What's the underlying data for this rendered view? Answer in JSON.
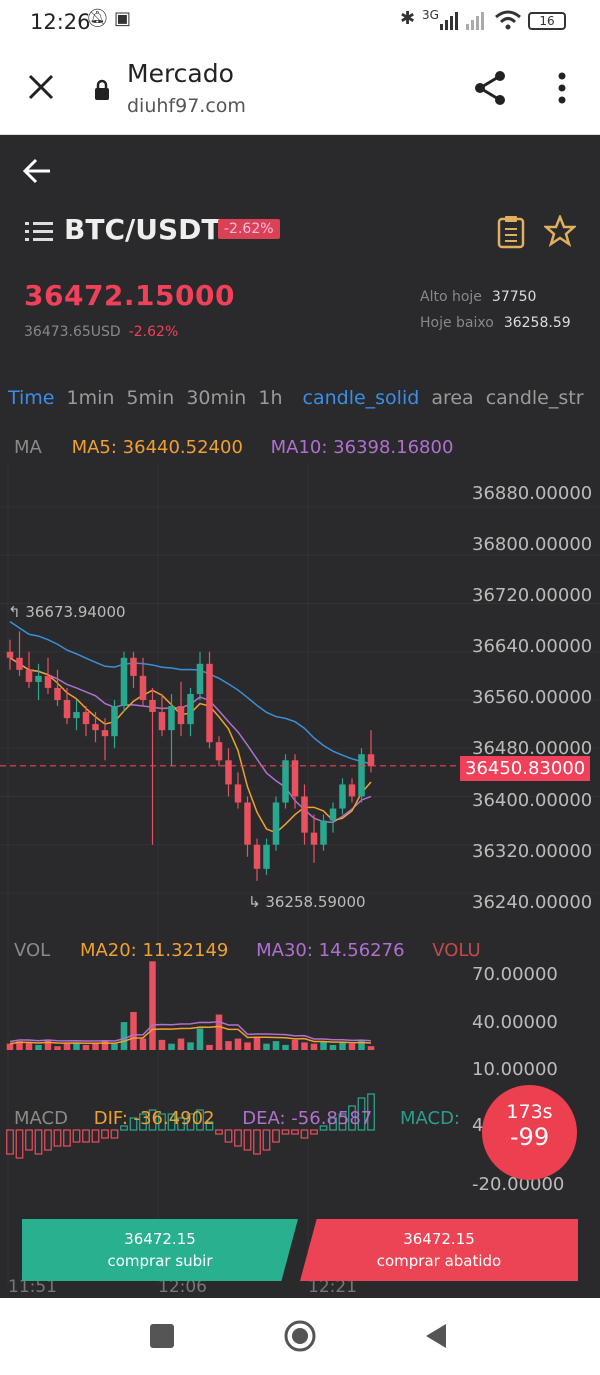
{
  "status": {
    "time": "12:26",
    "battery": "16",
    "net": "3G"
  },
  "browser": {
    "title": "Mercado",
    "url": "diuhf97.com"
  },
  "header": {
    "pair": "BTC/USDT",
    "change_badge": "-2.62%"
  },
  "ticker": {
    "price": "36472.15000",
    "usd": "36473.65USD",
    "change": "-2.62%",
    "high_label": "Alto hoje",
    "high": "37750",
    "low_label": "Hoje baixo",
    "low": "36258.59"
  },
  "tabs": [
    "Time",
    "1min",
    "5min",
    "30min",
    "1h",
    "candle_solid",
    "area",
    "candle_str"
  ],
  "ma_legend": {
    "ma": "MA",
    "ma5": "MA5: 36440.52400",
    "ma10": "MA10: 36398.16800"
  },
  "y_labels": [
    "36880.00000",
    "36800.00000",
    "36720.00000",
    "36640.00000",
    "36560.00000",
    "36480.00000",
    "36400.00000",
    "36320.00000",
    "36240.00000"
  ],
  "max_marker": "36673.94000",
  "min_marker": "36258.59000",
  "last_price_tag": "36450.83000",
  "vol_legend": {
    "vol": "VOL",
    "ma20": "MA20: 11.32149",
    "ma30": "MA30: 14.56276",
    "volu": "VOLU"
  },
  "vol_labels": [
    "70.00000",
    "40.00000",
    "10.00000"
  ],
  "macd_legend": {
    "macd": "MACD",
    "dif": "DIF: -36.4902",
    "dea": "DEA: -56.8587",
    "macd2": "MACD:"
  },
  "macd_labels": [
    "4",
    "-20.00000"
  ],
  "timer": {
    "seconds": "173s",
    "value": "-99"
  },
  "buttons": {
    "buy_price": "36472.15",
    "buy_label": "comprar subir",
    "sell_price": "36472.15",
    "sell_label": "comprar abatido"
  },
  "x_labels": [
    "11:51",
    "12:06",
    "12:21"
  ],
  "colors": {
    "up": "#2aa88f",
    "down": "#e8515f",
    "ma5": "#f0a030",
    "ma10": "#b070d0",
    "ma_long": "#3a90d8"
  },
  "chart_data": {
    "type": "candlestick",
    "candles": [
      [
        36640,
        36660,
        36610,
        36630
      ],
      [
        36630,
        36674,
        36600,
        36610
      ],
      [
        36610,
        36640,
        36580,
        36590
      ],
      [
        36590,
        36620,
        36560,
        36600
      ],
      [
        36600,
        36630,
        36570,
        36580
      ],
      [
        36580,
        36610,
        36550,
        36560
      ],
      [
        36560,
        36580,
        36520,
        36530
      ],
      [
        36530,
        36560,
        36510,
        36540
      ],
      [
        36540,
        36550,
        36500,
        36520
      ],
      [
        36520,
        36540,
        36490,
        36510
      ],
      [
        36510,
        36530,
        36460,
        36500
      ],
      [
        36500,
        36560,
        36480,
        36550
      ],
      [
        36550,
        36640,
        36540,
        36630
      ],
      [
        36630,
        36640,
        36580,
        36600
      ],
      [
        36600,
        36630,
        36550,
        36560
      ],
      [
        36560,
        36580,
        36320,
        36540
      ],
      [
        36540,
        36570,
        36500,
        36510
      ],
      [
        36510,
        36570,
        36450,
        36550
      ],
      [
        36550,
        36590,
        36500,
        36520
      ],
      [
        36520,
        36580,
        36500,
        36570
      ],
      [
        36570,
        36640,
        36560,
        36620
      ],
      [
        36620,
        36640,
        36480,
        36490
      ],
      [
        36490,
        36500,
        36450,
        36460
      ],
      [
        36460,
        36480,
        36400,
        36420
      ],
      [
        36420,
        36440,
        36380,
        36390
      ],
      [
        36390,
        36400,
        36300,
        36320
      ],
      [
        36320,
        36330,
        36260,
        36280
      ],
      [
        36280,
        36330,
        36270,
        36320
      ],
      [
        36320,
        36400,
        36310,
        36390
      ],
      [
        36390,
        36470,
        36380,
        36460
      ],
      [
        36460,
        36470,
        36380,
        36400
      ],
      [
        36400,
        36420,
        36320,
        36340
      ],
      [
        36340,
        36370,
        36290,
        36320
      ],
      [
        36320,
        36370,
        36310,
        36360
      ],
      [
        36360,
        36390,
        36340,
        36380
      ],
      [
        36380,
        36430,
        36370,
        36420
      ],
      [
        36420,
        36430,
        36390,
        36400
      ],
      [
        36400,
        36480,
        36390,
        36470
      ],
      [
        36470,
        36510,
        36440,
        36450
      ]
    ],
    "volumes": [
      5,
      7,
      6,
      4,
      8,
      3,
      5,
      6,
      4,
      5,
      7,
      5,
      22,
      30,
      9,
      70,
      8,
      5,
      9,
      6,
      17,
      4,
      28,
      7,
      9,
      6,
      10,
      5,
      7,
      4,
      8,
      6,
      5,
      7,
      4,
      6,
      5,
      7,
      3
    ],
    "macd_hist": [
      -6,
      -7,
      -5,
      -6,
      -5,
      -4,
      -4,
      -3,
      -3,
      -3,
      -2,
      -2,
      1,
      3,
      4,
      5,
      4,
      4,
      3,
      4,
      5,
      2,
      -1,
      -3,
      -4,
      -5,
      -6,
      -5,
      -3,
      -1,
      -1,
      -2,
      -1,
      1,
      3,
      4,
      6,
      8,
      9
    ]
  }
}
